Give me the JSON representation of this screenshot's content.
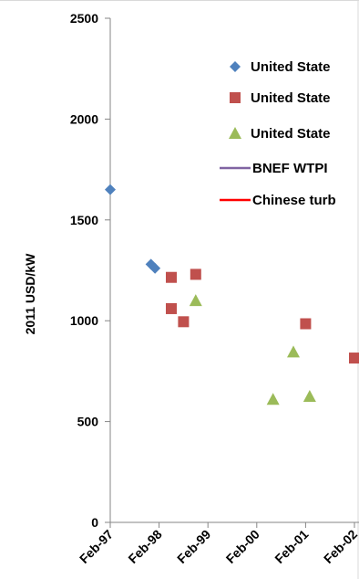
{
  "chart_data": {
    "type": "scatter",
    "ylabel": "2011 USD/kW",
    "ylim": [
      0,
      2500
    ],
    "yticks": [
      0,
      500,
      1000,
      1500,
      2000,
      2500
    ],
    "xticks": [
      "Feb-97",
      "Feb-98",
      "Feb-99",
      "Feb-00",
      "Feb-01",
      "Feb-02"
    ],
    "xlim": [
      "1997-02",
      "2002-02"
    ],
    "grid": false,
    "legend_position": "top-right",
    "series": [
      {
        "name": "United State",
        "marker": "diamond",
        "color": "#4F81BD",
        "points": [
          {
            "x": "1997-02",
            "y": 1650
          },
          {
            "x": "1997-12",
            "y": 1280
          },
          {
            "x": "1998-01",
            "y": 1260
          }
        ]
      },
      {
        "name": "United State",
        "marker": "square",
        "color": "#C0504D",
        "points": [
          {
            "x": "1998-05",
            "y": 1215
          },
          {
            "x": "1998-05",
            "y": 1060
          },
          {
            "x": "1998-08",
            "y": 995
          },
          {
            "x": "1998-11",
            "y": 1230
          },
          {
            "x": "2001-02",
            "y": 985
          },
          {
            "x": "2002-02",
            "y": 815
          }
        ]
      },
      {
        "name": "United State",
        "marker": "triangle",
        "color": "#9BBB59",
        "points": [
          {
            "x": "1998-11",
            "y": 1100
          },
          {
            "x": "2000-06",
            "y": 610
          },
          {
            "x": "2000-11",
            "y": 845
          },
          {
            "x": "2001-03",
            "y": 625
          }
        ]
      },
      {
        "name": "BNEF WTPI",
        "marker": "line",
        "color": "#8064A2",
        "points": []
      },
      {
        "name": "Chinese turb",
        "marker": "line",
        "color": "#FF0000",
        "points": []
      }
    ]
  }
}
